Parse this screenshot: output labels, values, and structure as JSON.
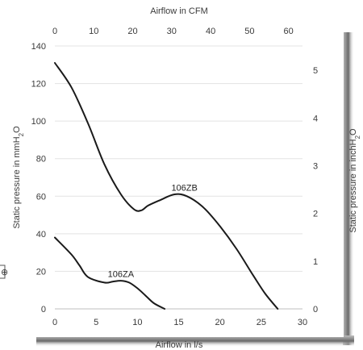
{
  "chart_data": {
    "type": "line",
    "title": "",
    "xlabel": "Airflow in l/s",
    "x2label": "Airflow in CFM",
    "ylabel": "Static pressure in mmH2O",
    "y2label": "Static pressure in inchH2O",
    "xlim": [
      0,
      30
    ],
    "x2lim": [
      0,
      63.6
    ],
    "ylim": [
      0,
      140
    ],
    "y2lim": [
      0,
      5.51
    ],
    "x_ticks": [
      0,
      5,
      10,
      15,
      20,
      25,
      30
    ],
    "x2_ticks": [
      0,
      10,
      20,
      30,
      40,
      50,
      60
    ],
    "y_ticks": [
      0,
      20,
      40,
      60,
      80,
      100,
      120,
      140
    ],
    "y2_ticks": [
      0,
      1,
      2,
      3,
      4,
      5
    ],
    "grid": true,
    "series": [
      {
        "name": "106ZB",
        "x": [
          0,
          2,
          4,
          6,
          8,
          9.6,
          10.5,
          11.3,
          12.8,
          14.5,
          16,
          18,
          20,
          22,
          24,
          25.5,
          27
        ],
        "y": [
          131,
          118,
          99,
          77,
          61,
          53,
          52.5,
          55,
          58,
          61,
          60,
          54,
          44,
          32,
          18,
          8,
          0
        ]
      },
      {
        "name": "106ZA",
        "x": [
          0,
          2,
          3,
          4,
          6,
          7,
          8,
          9,
          10,
          11,
          12,
          13.3
        ],
        "y": [
          38,
          29,
          23,
          17,
          14,
          14.5,
          15,
          14,
          11,
          7,
          3,
          0
        ]
      }
    ],
    "annotations": [
      {
        "text": "106ZB",
        "x": 15.7,
        "y": 63
      },
      {
        "text": "106ZA",
        "x": 8.0,
        "y": 17
      }
    ]
  }
}
